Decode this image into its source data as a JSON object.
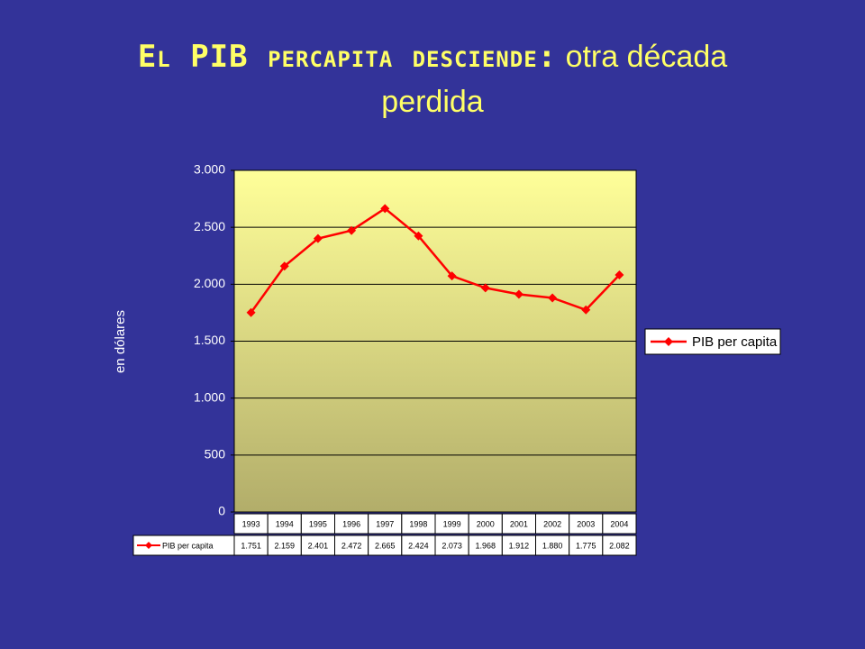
{
  "chart_data": {
    "type": "line",
    "title": "El PIB percapita desciende:",
    "subtitle": "otra década perdida",
    "y_label": "en dólares",
    "categories": [
      "1993",
      "1994",
      "1995",
      "1996",
      "1997",
      "1998",
      "1999",
      "2000",
      "2001",
      "2002",
      "2003",
      "2004"
    ],
    "series": [
      {
        "name": "PIB per capita",
        "color": "#ff0000",
        "values": [
          1751,
          2159,
          2401,
          2472,
          2665,
          2424,
          2073,
          1968,
          1912,
          1880,
          1775,
          2082
        ],
        "value_labels": [
          "1.751",
          "2.159",
          "2.401",
          "2.472",
          "2.665",
          "2.424",
          "2.073",
          "1.968",
          "1.912",
          "1.880",
          "1.775",
          "2.082"
        ]
      }
    ],
    "ylim": [
      0,
      3000
    ],
    "yticks": [
      0,
      500,
      {
        "value": 1000,
        "label": "1.000"
      },
      {
        "value": 1500,
        "label": "1.500"
      },
      {
        "value": 2000,
        "label": "2.000"
      },
      {
        "value": 2500,
        "label": "2.500"
      },
      {
        "value": 3000,
        "label": "3.000"
      }
    ],
    "grid": true,
    "legend": "right"
  }
}
